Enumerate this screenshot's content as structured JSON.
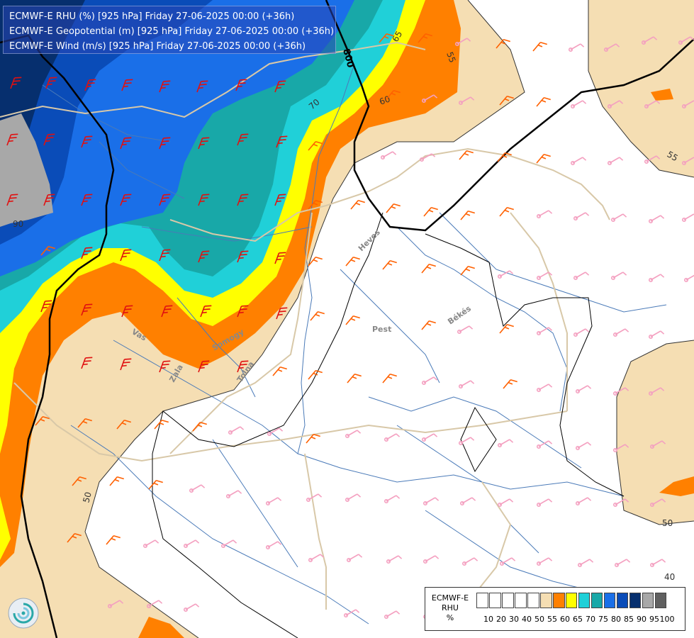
{
  "title_lines": [
    "ECMWF-E RHU (%) [925 hPa] Friday 27-06-2025 00:00 (+36h)",
    "ECMWF-E Geopotential (m) [925 hPa] Friday 27-06-2025 00:00 (+36h)",
    "ECMWF-E Wind (m/s) [925 hPa] Friday 27-06-2025 00:00 (+36h)"
  ],
  "legend": {
    "title_lines": [
      "ECMWF-E",
      "RHU",
      "%"
    ],
    "bins": [
      {
        "label": "10",
        "color": "#ffffff"
      },
      {
        "label": "20",
        "color": "#ffffff"
      },
      {
        "label": "30",
        "color": "#ffffff"
      },
      {
        "label": "40",
        "color": "#ffffff"
      },
      {
        "label": "50",
        "color": "#ffffff"
      },
      {
        "label": "55",
        "color": "#f5deb3"
      },
      {
        "label": "60",
        "color": "#ff8000"
      },
      {
        "label": "65",
        "color": "#ffff00"
      },
      {
        "label": "70",
        "color": "#20d0d8"
      },
      {
        "label": "75",
        "color": "#18a8a8"
      },
      {
        "label": "80",
        "color": "#1a6fe8"
      },
      {
        "label": "85",
        "color": "#0a4cb8"
      },
      {
        "label": "90",
        "color": "#062f6e"
      },
      {
        "label": "95",
        "color": "#a8a8a8"
      },
      {
        "label": "100",
        "color": "#606060"
      }
    ],
    "tick_labels": [
      "10",
      "20",
      "30",
      "40",
      "50",
      "55",
      "60",
      "65",
      "70",
      "75",
      "80",
      "85",
      "90",
      "95",
      "100"
    ]
  },
  "contour_labels": [
    "65",
    "55",
    "70",
    "60",
    "55",
    "50",
    "50",
    "40",
    "90",
    "800"
  ],
  "region_labels": [
    "Heves",
    "Pest",
    "Békés",
    "Vas",
    "Zala",
    "Somogy",
    "Tolna"
  ],
  "colors": {
    "wind_barb_high": "#e01010",
    "wind_barb_mid": "#ff6000",
    "wind_barb_low": "#f4a0c0",
    "rivers": "#4a7ab8",
    "borders": "#d8c8a8",
    "isohypse": "#000000"
  }
}
